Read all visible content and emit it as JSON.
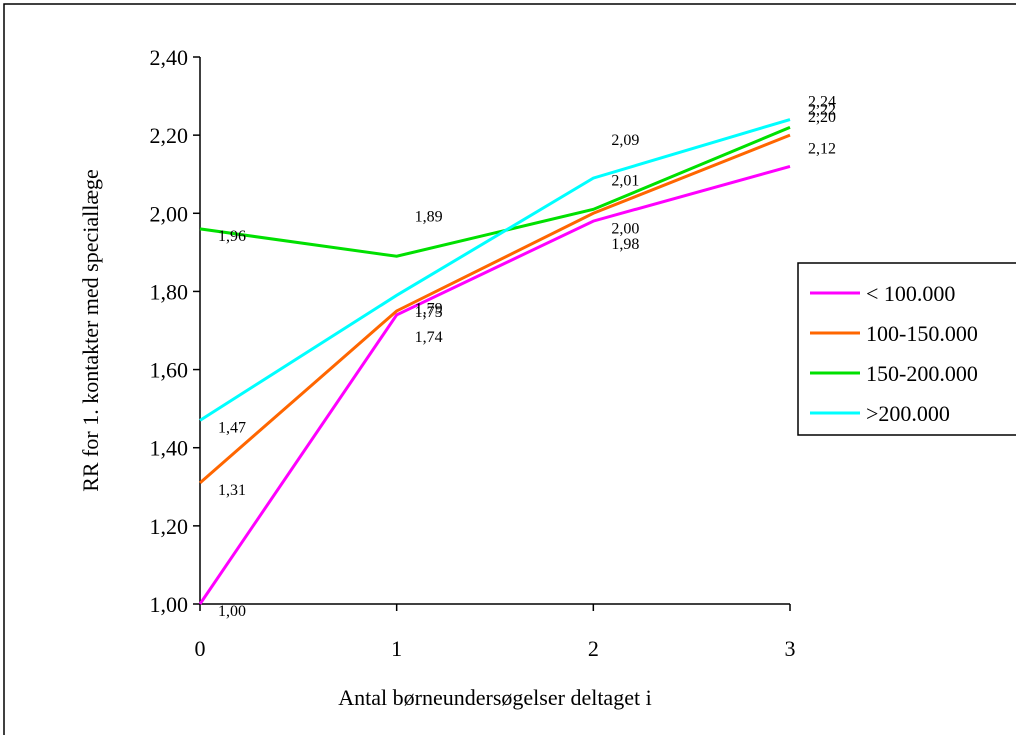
{
  "chart_data": {
    "type": "line",
    "title": "",
    "xlabel": "Antal børneundersøgelser deltaget i",
    "ylabel": "RR for 1. kontakter med speciallæge",
    "x": [
      0,
      1,
      2,
      3
    ],
    "x_tick_labels": [
      "0",
      "1",
      "2",
      "3"
    ],
    "ylim": [
      1.0,
      2.4
    ],
    "y_tick_labels": [
      "1,00",
      "1,20",
      "1,40",
      "1,60",
      "1,80",
      "2,00",
      "2,20",
      "2,40"
    ],
    "grid": false,
    "legend_position": "right",
    "series": [
      {
        "name": "< 100.000",
        "color": "#ff00ff",
        "values": [
          1.0,
          1.74,
          1.98,
          2.12
        ],
        "labels": [
          "1,00",
          "1,74",
          "1,98",
          "2,12"
        ]
      },
      {
        "name": "100-150.000",
        "color": "#ff6600",
        "values": [
          1.31,
          1.75,
          2.0,
          2.2
        ],
        "labels": [
          "1,31",
          "1,75",
          "2,00",
          "2,20"
        ]
      },
      {
        "name": "150-200.000",
        "color": "#00e000",
        "values": [
          1.96,
          1.89,
          2.01,
          2.22
        ],
        "labels": [
          "1,96",
          "1,89",
          "2,01",
          "2,22"
        ]
      },
      {
        "name": ">200.000",
        "color": "#00ffff",
        "values": [
          1.47,
          1.79,
          2.09,
          2.24
        ],
        "labels": [
          "1,47",
          "1,79",
          "2,09",
          "2,24"
        ]
      }
    ]
  }
}
